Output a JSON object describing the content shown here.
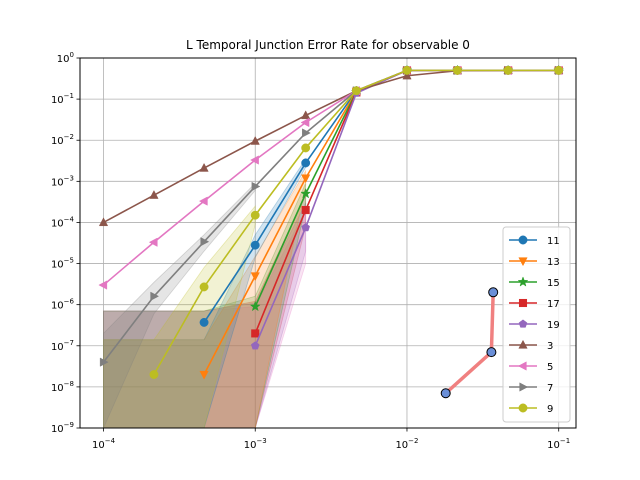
{
  "chart_data": {
    "type": "line",
    "title": "L Temporal Junction Error Rate for observable 0",
    "xlabel": "",
    "ylabel": "",
    "xscale": "log",
    "yscale": "log",
    "xlim": [
      7e-05,
      0.13
    ],
    "ylim": [
      1e-09,
      1
    ],
    "grid": true,
    "legend_position": "lower-right",
    "x_ticks": [
      {
        "value": 0.0001,
        "base": "10",
        "exp": "−4"
      },
      {
        "value": 0.001,
        "base": "10",
        "exp": "−3"
      },
      {
        "value": 0.01,
        "base": "10",
        "exp": "−2"
      },
      {
        "value": 0.1,
        "base": "10",
        "exp": "−1"
      }
    ],
    "y_ticks": [
      {
        "value": 1e-09,
        "base": "10",
        "exp": "−9"
      },
      {
        "value": 1e-08,
        "base": "10",
        "exp": "−8"
      },
      {
        "value": 1e-07,
        "base": "10",
        "exp": "−7"
      },
      {
        "value": 1e-06,
        "base": "10",
        "exp": "−6"
      },
      {
        "value": 1e-05,
        "base": "10",
        "exp": "−5"
      },
      {
        "value": 0.0001,
        "base": "10",
        "exp": "−4"
      },
      {
        "value": 0.001,
        "base": "10",
        "exp": "−3"
      },
      {
        "value": 0.01,
        "base": "10",
        "exp": "−2"
      },
      {
        "value": 0.1,
        "base": "10",
        "exp": "−1"
      },
      {
        "value": 1,
        "base": "10",
        "exp": "0"
      }
    ],
    "series": [
      {
        "name": "11",
        "color": "#1f77b4",
        "marker": "circle",
        "x": [
          0.00046,
          0.001,
          0.00215,
          0.00464,
          0.01,
          0.0215,
          0.0464,
          0.1
        ],
        "y": [
          3.7e-07,
          2.8e-05,
          0.0028,
          0.16,
          0.5,
          0.5,
          0.5,
          0.5
        ]
      },
      {
        "name": "13",
        "color": "#ff7f0e",
        "marker": "triangle-down",
        "x": [
          0.00046,
          0.001,
          0.00215,
          0.00464,
          0.01,
          0.0215,
          0.0464,
          0.1
        ],
        "y": [
          2e-08,
          5e-06,
          0.0012,
          0.155,
          0.5,
          0.5,
          0.5,
          0.5
        ]
      },
      {
        "name": "15",
        "color": "#2ca02c",
        "marker": "star",
        "x": [
          0.001,
          0.00215,
          0.00464,
          0.01,
          0.0215,
          0.0464,
          0.1
        ],
        "y": [
          9e-07,
          0.0005,
          0.15,
          0.5,
          0.5,
          0.5,
          0.5
        ]
      },
      {
        "name": "17",
        "color": "#d62728",
        "marker": "square",
        "x": [
          0.001,
          0.00215,
          0.00464,
          0.01,
          0.0215,
          0.0464,
          0.1
        ],
        "y": [
          2e-07,
          0.0002,
          0.145,
          0.5,
          0.5,
          0.5,
          0.5
        ]
      },
      {
        "name": "19",
        "color": "#9467bd",
        "marker": "pentagon",
        "x": [
          0.001,
          0.00215,
          0.00464,
          0.01,
          0.0215,
          0.0464,
          0.1
        ],
        "y": [
          1e-07,
          7.5e-05,
          0.14,
          0.5,
          0.5,
          0.5,
          0.5
        ]
      },
      {
        "name": "3",
        "color": "#8c564b",
        "marker": "triangle-up",
        "x": [
          0.0001,
          0.000215,
          0.00046,
          0.001,
          0.00215,
          0.00464,
          0.01,
          0.0215,
          0.0464,
          0.1
        ],
        "y": [
          0.0001,
          0.00046,
          0.0021,
          0.0095,
          0.04,
          0.16,
          0.37,
          0.49,
          0.5,
          0.5
        ]
      },
      {
        "name": "5",
        "color": "#e377c2",
        "marker": "triangle-left",
        "x": [
          0.0001,
          0.000215,
          0.00046,
          0.001,
          0.00215,
          0.00464,
          0.01,
          0.0215,
          0.0464,
          0.1
        ],
        "y": [
          3e-06,
          3.3e-05,
          0.00033,
          0.0033,
          0.027,
          0.16,
          0.5,
          0.5,
          0.5,
          0.5
        ]
      },
      {
        "name": "7",
        "color": "#7f7f7f",
        "marker": "triangle-right",
        "x": [
          0.0001,
          0.000215,
          0.00046,
          0.001,
          0.00215,
          0.00464,
          0.01,
          0.0215,
          0.0464,
          0.1
        ],
        "y": [
          4e-08,
          1.6e-06,
          3.4e-05,
          0.00075,
          0.015,
          0.16,
          0.5,
          0.5,
          0.5,
          0.5
        ]
      },
      {
        "name": "9",
        "color": "#bcbd22",
        "marker": "circle",
        "x": [
          0.000215,
          0.00046,
          0.001,
          0.00215,
          0.00464,
          0.01,
          0.0215,
          0.0464,
          0.1
        ],
        "y": [
          2e-08,
          2.7e-06,
          0.00015,
          0.0065,
          0.16,
          0.5,
          0.5,
          0.5,
          0.5
        ]
      }
    ],
    "bands": [
      {
        "color": "#d62728",
        "x": [
          0.0001,
          0.00046,
          0.001,
          0.00215
        ],
        "lo": [
          1e-09,
          1e-09,
          1e-09,
          8e-05
        ],
        "hi": [
          7e-07,
          7e-07,
          1.2e-06,
          0.00045
        ]
      },
      {
        "color": "#9467bd",
        "x": [
          0.0001,
          0.00046,
          0.001,
          0.00215
        ],
        "lo": [
          1e-09,
          1e-09,
          1e-09,
          2e-05
        ],
        "hi": [
          7e-07,
          7e-07,
          1.1e-06,
          0.0003
        ]
      },
      {
        "color": "#e377c2",
        "x": [
          0.0001,
          0.00046,
          0.001,
          0.00215
        ],
        "lo": [
          1e-09,
          1e-09,
          1e-09,
          1e-05
        ],
        "hi": [
          7e-07,
          7e-07,
          9e-07,
          0.0002
        ]
      },
      {
        "color": "#2ca02c",
        "x": [
          0.0001,
          0.00046,
          0.001,
          0.00215
        ],
        "lo": [
          1e-09,
          1e-09,
          1e-09,
          0.00025
        ],
        "hi": [
          7e-07,
          7e-07,
          1.6e-06,
          0.0009
        ]
      },
      {
        "color": "#ff7f0e",
        "x": [
          0.0001,
          0.00046,
          0.001,
          0.00215
        ],
        "lo": [
          1e-09,
          1e-09,
          1e-09,
          0.0008
        ],
        "hi": [
          1.4e-07,
          1.4e-07,
          1.5e-05,
          0.0018
        ]
      },
      {
        "color": "#1f77b4",
        "x": [
          0.0001,
          0.00046,
          0.001,
          0.00215
        ],
        "lo": [
          1e-09,
          1e-09,
          1.4e-05,
          0.0022
        ],
        "hi": [
          1.4e-07,
          1.4e-07,
          5e-05,
          0.0035
        ]
      },
      {
        "color": "#bcbd22",
        "x": [
          0.0001,
          0.000215,
          0.00046,
          0.001
        ],
        "lo": [
          1e-09,
          1e-09,
          1e-09,
          9e-05
        ],
        "hi": [
          1.4e-07,
          1.4e-07,
          8e-06,
          0.00025
        ]
      },
      {
        "color": "#7f7f7f",
        "x": [
          0.0001,
          0.000215,
          0.00046,
          0.001
        ],
        "lo": [
          1e-09,
          6e-07,
          2e-05,
          0.0006
        ],
        "hi": [
          2e-07,
          3.5e-06,
          5e-05,
          0.0009
        ]
      }
    ],
    "extra_line": {
      "color": "#f08080",
      "marker_fill": "#6a8fd8",
      "x": [
        0.018,
        0.036,
        0.037
      ],
      "y": [
        7e-09,
        7e-08,
        2e-06
      ]
    }
  }
}
